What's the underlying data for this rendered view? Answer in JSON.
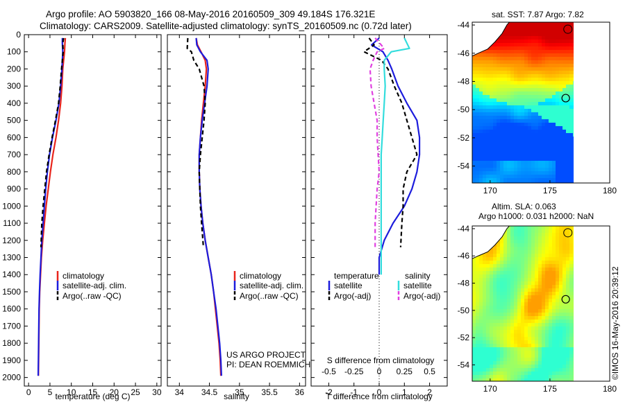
{
  "header": {
    "line1": "Argo profile: AO 5903820_166 08-May-2016 20160509_309 49.184S 176.321E",
    "line2": "Climatology: CARS2009. Satellite-adjusted climatology: synTS_20160509.nc (0.72d later)"
  },
  "depth_ticks": [
    0,
    100,
    200,
    300,
    400,
    500,
    600,
    700,
    800,
    900,
    1000,
    1100,
    1200,
    1300,
    1400,
    1500,
    1600,
    1700,
    1800,
    1900,
    2000
  ],
  "credits": {
    "line1": "US ARGO PROJECT",
    "line2": "PI: DEAN ROEMMICH"
  },
  "timestamp": "©IMOS 16-May-2016 20:39:12",
  "colors": {
    "climatology": "#e8241c",
    "satellite": "#1c1cdc",
    "argo": "#000000",
    "satellite_s": "#33dddd",
    "argo_s": "#e040e0"
  },
  "chart_data": [
    {
      "type": "line",
      "id": "temperature",
      "xlabel": "temperature (deg C)",
      "ylim": [
        2050,
        0
      ],
      "xlim": [
        -1,
        31
      ],
      "xticks": [
        0,
        5,
        10,
        15,
        20,
        25,
        30
      ],
      "legend": {
        "placement": "lower-middle",
        "entries": [
          "climatology",
          "satellite-adj. clim.",
          "Argo(..raw -QC)"
        ]
      },
      "series": [
        {
          "name": "climatology",
          "color": "#e8241c",
          "style": "solid",
          "x": [
            8.6,
            8.5,
            8.4,
            8.2,
            8.0,
            7.8,
            7.5,
            7.0,
            6.4,
            5.7,
            5.1,
            4.6,
            4.1,
            3.7,
            3.3,
            3.0,
            2.8,
            2.6,
            2.5,
            2.45,
            2.4,
            2.35,
            2.3
          ],
          "y": [
            20,
            50,
            100,
            150,
            200,
            300,
            400,
            500,
            600,
            700,
            800,
            900,
            1000,
            1100,
            1200,
            1300,
            1400,
            1500,
            1600,
            1700,
            1800,
            1900,
            1990
          ]
        },
        {
          "name": "satellite-adj. clim.",
          "color": "#1c1cdc",
          "style": "solid",
          "x": [
            7.9,
            7.9,
            8.0,
            7.9,
            7.8,
            7.5,
            7.1,
            6.4,
            5.6,
            4.9,
            4.4,
            4.0,
            3.7,
            3.4,
            3.1,
            2.9,
            2.7,
            2.55,
            2.45,
            2.4,
            2.35,
            2.3,
            2.25
          ],
          "y": [
            20,
            50,
            100,
            150,
            200,
            300,
            400,
            500,
            600,
            700,
            800,
            900,
            1000,
            1100,
            1200,
            1300,
            1400,
            1500,
            1600,
            1700,
            1800,
            1900,
            1990
          ]
        },
        {
          "name": "Argo(..raw -QC)",
          "color": "#000000",
          "style": "dashed",
          "x": [
            8.2,
            8.0,
            8.1,
            7.9,
            7.7,
            7.4,
            7.0,
            6.3,
            5.5,
            4.8,
            4.2,
            3.8,
            3.4,
            3.1,
            2.9
          ],
          "y": [
            20,
            50,
            100,
            150,
            200,
            300,
            400,
            500,
            600,
            700,
            800,
            900,
            1000,
            1100,
            1240
          ]
        }
      ]
    },
    {
      "type": "line",
      "id": "salinity",
      "xlabel": "salinity",
      "ylim": [
        2050,
        0
      ],
      "xlim": [
        33.8,
        36.1
      ],
      "xticks": [
        34,
        34.5,
        35,
        35.5,
        36
      ],
      "legend": {
        "placement": "lower-middle",
        "entries": [
          "climatology",
          "satellite-adj. clim.",
          "Argo(..raw -QC)"
        ]
      },
      "series": [
        {
          "name": "climatology",
          "color": "#e8241c",
          "style": "solid",
          "x": [
            34.28,
            34.3,
            34.36,
            34.43,
            34.45,
            34.43,
            34.4,
            34.37,
            34.35,
            34.33,
            34.33,
            34.34,
            34.36,
            34.39,
            34.43,
            34.48,
            34.53,
            34.57,
            34.6,
            34.63,
            34.66,
            34.68,
            34.69
          ],
          "y": [
            20,
            60,
            100,
            150,
            200,
            300,
            400,
            500,
            600,
            700,
            800,
            900,
            1000,
            1100,
            1200,
            1300,
            1400,
            1500,
            1600,
            1700,
            1800,
            1900,
            1990
          ]
        },
        {
          "name": "satellite-adj. clim.",
          "color": "#1c1cdc",
          "style": "solid",
          "x": [
            34.28,
            34.29,
            34.35,
            34.46,
            34.48,
            34.46,
            34.42,
            34.38,
            34.35,
            34.33,
            34.33,
            34.34,
            34.36,
            34.39,
            34.43,
            34.48,
            34.53,
            34.57,
            34.61,
            34.64,
            34.67,
            34.69,
            34.7
          ],
          "y": [
            20,
            60,
            100,
            150,
            200,
            300,
            400,
            500,
            600,
            700,
            800,
            900,
            1000,
            1100,
            1200,
            1300,
            1400,
            1500,
            1600,
            1700,
            1800,
            1900,
            1990
          ]
        },
        {
          "name": "Argo(..raw -QC)",
          "color": "#000000",
          "style": "dashed",
          "x": [
            34.14,
            34.13,
            34.2,
            34.24,
            34.33,
            34.41,
            34.43,
            34.41,
            34.38,
            34.35,
            34.33,
            34.34,
            34.35,
            34.37,
            34.4
          ],
          "y": [
            20,
            80,
            100,
            150,
            200,
            300,
            400,
            500,
            600,
            700,
            800,
            900,
            1000,
            1100,
            1240
          ]
        }
      ]
    },
    {
      "type": "line",
      "id": "difference",
      "xlabel": "T difference from climatology",
      "xlabel_top": "S difference from climatology",
      "ylim": [
        2050,
        0
      ],
      "xlim": [
        -2.7,
        2.7
      ],
      "xticks": [
        -2,
        -1,
        0,
        1,
        2
      ],
      "xticks_s": [
        -0.5,
        -0.25,
        0,
        0.25,
        0.5
      ],
      "xticklabels_s": [
        "-0.5",
        "-0.25",
        "0",
        "0.25",
        "0.5"
      ],
      "legend": {
        "placement": "lower-middle",
        "temperature_title": "temperature",
        "salinity_title": "salinity",
        "entries": [
          "satellite",
          "Argo(-adj)",
          "satellite",
          "Argo(-adj)"
        ]
      },
      "series": [
        {
          "name": "temperature satellite",
          "color": "#1c1cdc",
          "style": "solid",
          "x": [
            0.0,
            -0.3,
            0.15,
            0.35,
            0.5,
            0.75,
            1.1,
            1.5,
            1.6,
            1.6,
            1.5,
            1.3,
            1.0,
            0.55,
            0.2,
            0.0,
            0.0
          ],
          "y": [
            20,
            60,
            100,
            150,
            200,
            300,
            400,
            500,
            600,
            700,
            800,
            900,
            1000,
            1100,
            1200,
            1300,
            1400
          ]
        },
        {
          "name": "temperature Argo(-adj)",
          "color": "#000000",
          "style": "dashed",
          "x": [
            -0.4,
            -0.2,
            -0.6,
            0.1,
            0.35,
            0.6,
            0.9,
            1.1,
            1.3,
            1.5,
            1.1,
            0.95,
            0.95,
            0.9,
            0.85
          ],
          "y": [
            20,
            60,
            100,
            150,
            200,
            300,
            400,
            500,
            600,
            700,
            800,
            900,
            1000,
            1100,
            1240
          ]
        },
        {
          "name": "salinity satellite",
          "color": "#33dddd",
          "style": "solid",
          "x": [
            0.25,
            0.3,
            0.12,
            0.05,
            0.05,
            0.06,
            0.05,
            0.04,
            0.03,
            0.02,
            0.02,
            0.02,
            0.02,
            0.02,
            0.02,
            0.02
          ],
          "y": [
            20,
            80,
            100,
            150,
            200,
            300,
            400,
            500,
            600,
            700,
            800,
            900,
            1000,
            1100,
            1200,
            1400
          ]
        },
        {
          "name": "salinity Argo(-adj)",
          "color": "#e040e0",
          "style": "dashed",
          "x": [
            -0.04,
            0.05,
            -0.02,
            -0.06,
            -0.09,
            -0.08,
            -0.05,
            -0.02,
            -0.02,
            -0.01,
            0.0,
            -0.02,
            -0.03,
            -0.04,
            -0.04
          ],
          "y": [
            20,
            80,
            100,
            150,
            200,
            300,
            400,
            500,
            600,
            700,
            800,
            900,
            1000,
            1100,
            1240
          ]
        }
      ]
    },
    {
      "type": "heatmap",
      "id": "sst_map",
      "title": "sat. SST: 7.87 Argo: 7.82",
      "xlim": [
        168.5,
        180
      ],
      "ylim": [
        -55.2,
        -43.8
      ],
      "xticks": [
        170,
        175,
        180
      ],
      "yticks": [
        -44,
        -46,
        -48,
        -50,
        -52,
        -54
      ],
      "argo_position": {
        "lon": 176.321,
        "lat": -49.184
      }
    },
    {
      "type": "heatmap",
      "id": "sla_map",
      "title": "Altim. SLA: 0.063",
      "subtitle": "Argo h1000: 0.031 h2000: NaN",
      "xlim": [
        168.5,
        180
      ],
      "ylim": [
        -55.2,
        -43.8
      ],
      "xticks": [
        170,
        175,
        180
      ],
      "yticks": [
        -44,
        -46,
        -48,
        -50,
        -52,
        -54
      ],
      "argo_position": {
        "lon": 176.321,
        "lat": -49.184
      }
    }
  ]
}
